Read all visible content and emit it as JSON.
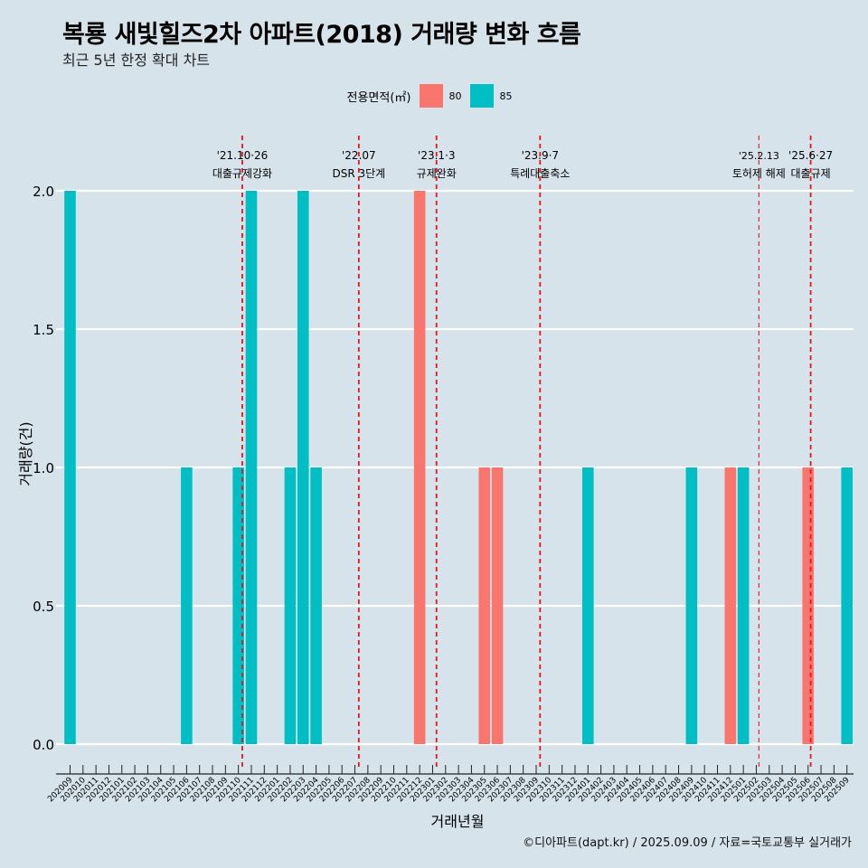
{
  "header": {
    "title": "복룡 새빛힐즈2차 아파트(2018) 거래량 변화 흐름",
    "subtitle": "최근 5년 한정 확대 차트"
  },
  "legend": {
    "title": "전용면적(㎡)",
    "items": [
      {
        "label": "80",
        "color": "#f8766d"
      },
      {
        "label": "85",
        "color": "#00bfc4"
      }
    ]
  },
  "caption": "©디아파트(dapt.kr) / 2025.09.09 / 자료=국토교통부 실거래가",
  "chart_data": {
    "type": "bar",
    "xlabel": "거래년월",
    "ylabel": "거래량(건)",
    "ylim": [
      0,
      2
    ],
    "yticks": [
      "0.0",
      "0.5",
      "1.0",
      "1.5",
      "2.0"
    ],
    "grid": true,
    "legend_position": "top",
    "categories": [
      "202009",
      "202010",
      "202011",
      "202012",
      "202101",
      "202102",
      "202103",
      "202104",
      "202105",
      "202106",
      "202107",
      "202108",
      "202109",
      "202110",
      "202111",
      "202112",
      "202201",
      "202202",
      "202203",
      "202204",
      "202205",
      "202206",
      "202207",
      "202208",
      "202209",
      "202210",
      "202211",
      "202212",
      "202301",
      "202302",
      "202303",
      "202304",
      "202305",
      "202306",
      "202307",
      "202308",
      "202309",
      "202310",
      "202311",
      "202312",
      "202401",
      "202402",
      "202403",
      "202404",
      "202405",
      "202406",
      "202407",
      "202408",
      "202409",
      "202410",
      "202411",
      "202412",
      "202501",
      "202502",
      "202503",
      "202504",
      "202505",
      "202506",
      "202507",
      "202508",
      "202509"
    ],
    "series": [
      {
        "name": "80",
        "color": "#f8766d",
        "values": [
          0,
          0,
          0,
          0,
          0,
          0,
          0,
          0,
          0,
          0,
          0,
          0,
          0,
          0,
          0,
          0,
          0,
          0,
          0,
          0,
          0,
          0,
          0,
          0,
          0,
          0,
          0,
          2,
          0,
          0,
          0,
          0,
          1,
          1,
          0,
          0,
          0,
          0,
          0,
          0,
          0,
          0,
          0,
          0,
          0,
          0,
          0,
          0,
          0,
          0,
          0,
          1,
          0,
          0,
          0,
          0,
          0,
          1,
          0,
          0,
          0
        ]
      },
      {
        "name": "85",
        "color": "#00bfc4",
        "values": [
          2,
          0,
          0,
          0,
          0,
          0,
          0,
          0,
          0,
          1,
          0,
          0,
          0,
          1,
          2,
          0,
          0,
          1,
          2,
          1,
          0,
          0,
          0,
          0,
          0,
          0,
          0,
          0,
          0,
          0,
          0,
          0,
          0,
          0,
          0,
          0,
          0,
          0,
          0,
          0,
          1,
          0,
          0,
          0,
          0,
          0,
          0,
          0,
          1,
          0,
          0,
          0,
          1,
          0,
          0,
          0,
          0,
          0,
          0,
          0,
          1
        ]
      }
    ],
    "events": [
      {
        "date_line1": "'21.10·26",
        "date_line2": "대출규제강화",
        "x_index": 13.3
      },
      {
        "date_line1": "'22.07",
        "date_line2": "DSR 3단계",
        "x_index": 22.3
      },
      {
        "date_line1": "'23.1·3",
        "date_line2": "규제완화",
        "x_index": 28.3
      },
      {
        "date_line1": "'23.9·7",
        "date_line2": "특례대출축소",
        "x_index": 36.3
      },
      {
        "date_line1": "'25.2.13",
        "date_line2": "토허제 해제",
        "x_index": 53.2,
        "thin": true
      },
      {
        "date_line1": "'25.6·27",
        "date_line2": "대출규제",
        "x_index": 57.2
      }
    ]
  }
}
